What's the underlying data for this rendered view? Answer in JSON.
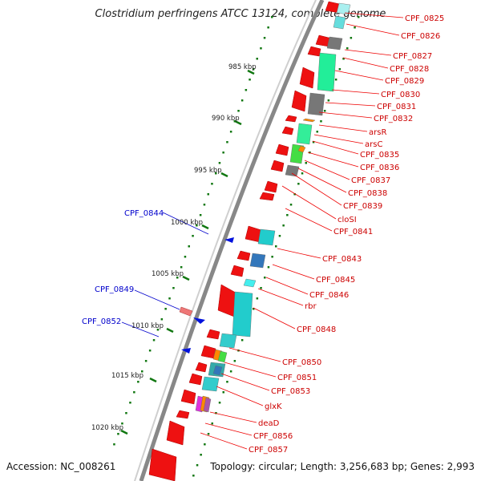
{
  "title": "Clostridium perfringens ATCC 13124, complete genome",
  "footer": {
    "accession": "Accession: NC_008261",
    "topology": "Topology: circular; Length: 3,256,683 bp; Genes: 2,993"
  },
  "colors": {
    "backbone": "#888888",
    "forward_gene": "#ee1111",
    "gene_label": "#cc0000",
    "blue_label": "#0000cc",
    "tick": "#117711",
    "dots": "#117711"
  },
  "scale_labels": [
    "985 kbp",
    "990 kbp",
    "995 kbp",
    "1000 kbp",
    "1005 kbp",
    "1010 kbp",
    "1015 kbp",
    "1020 kbp"
  ],
  "right_labels": [
    "CPF_0825",
    "CPF_0826",
    "CPF_0827",
    "CPF_0828",
    "CPF_0829",
    "CPF_0830",
    "CPF_0831",
    "CPF_0832",
    "arsR",
    "arsC",
    "CPF_0835",
    "CPF_0836",
    "CPF_0837",
    "CPF_0838",
    "CPF_0839",
    "cloSI",
    "CPF_0841",
    "CPF_0843",
    "CPF_0845",
    "CPF_0846",
    "rbr",
    "CPF_0848",
    "CPF_0850",
    "CPF_0851",
    "CPF_0853",
    "glxK",
    "deaD",
    "CPF_0856",
    "CPF_0857"
  ],
  "left_labels": [
    "CPF_0844",
    "CPF_0849",
    "CPF_0852"
  ]
}
